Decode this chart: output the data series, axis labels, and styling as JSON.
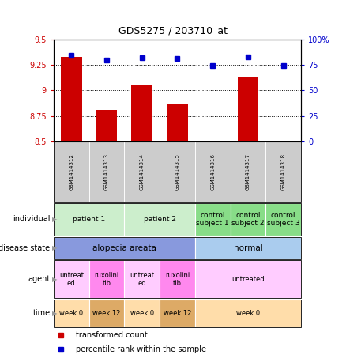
{
  "title": "GDS5275 / 203710_at",
  "samples": [
    "GSM1414312",
    "GSM1414313",
    "GSM1414314",
    "GSM1414315",
    "GSM1414316",
    "GSM1414317",
    "GSM1414318"
  ],
  "transformed_count": [
    9.33,
    8.81,
    9.05,
    8.87,
    8.51,
    9.13,
    8.5
  ],
  "percentile_rank": [
    84,
    80,
    82,
    81,
    74,
    83,
    74
  ],
  "ylim_left": [
    8.5,
    9.5
  ],
  "ylim_right": [
    0,
    100
  ],
  "yticks_left": [
    8.5,
    8.75,
    9.0,
    9.25,
    9.5
  ],
  "yticks_right": [
    0,
    25,
    50,
    75,
    100
  ],
  "ytick_labels_right": [
    "0",
    "25",
    "50",
    "75",
    "100%"
  ],
  "bar_color": "#cc0000",
  "dot_color": "#0000cc",
  "background_color": "#ffffff",
  "individual_groups": [
    {
      "span": [
        0,
        1
      ],
      "text": "patient 1",
      "color": "#cceecc"
    },
    {
      "span": [
        2,
        3
      ],
      "text": "patient 2",
      "color": "#cceecc"
    },
    {
      "span": [
        4,
        4
      ],
      "text": "control\nsubject 1",
      "color": "#88dd88"
    },
    {
      "span": [
        5,
        5
      ],
      "text": "control\nsubject 2",
      "color": "#88dd88"
    },
    {
      "span": [
        6,
        6
      ],
      "text": "control\nsubject 3",
      "color": "#88dd88"
    }
  ],
  "disease_groups": [
    {
      "span": [
        0,
        3
      ],
      "text": "alopecia areata",
      "color": "#8899dd"
    },
    {
      "span": [
        4,
        6
      ],
      "text": "normal",
      "color": "#aaccee"
    }
  ],
  "agent_groups": [
    {
      "span": [
        0,
        0
      ],
      "text": "untreat\ned",
      "color": "#ffccff"
    },
    {
      "span": [
        1,
        1
      ],
      "text": "ruxolini\ntib",
      "color": "#ff88ee"
    },
    {
      "span": [
        2,
        2
      ],
      "text": "untreat\ned",
      "color": "#ffccff"
    },
    {
      "span": [
        3,
        3
      ],
      "text": "ruxolini\ntib",
      "color": "#ff88ee"
    },
    {
      "span": [
        4,
        6
      ],
      "text": "untreated",
      "color": "#ffccff"
    }
  ],
  "time_groups": [
    {
      "span": [
        0,
        0
      ],
      "text": "week 0",
      "color": "#ffddaa"
    },
    {
      "span": [
        1,
        1
      ],
      "text": "week 12",
      "color": "#ddaa66"
    },
    {
      "span": [
        2,
        2
      ],
      "text": "week 0",
      "color": "#ffddaa"
    },
    {
      "span": [
        3,
        3
      ],
      "text": "week 12",
      "color": "#ddaa66"
    },
    {
      "span": [
        4,
        6
      ],
      "text": "week 0",
      "color": "#ffddaa"
    }
  ],
  "row_labels": [
    "individual",
    "disease state",
    "agent",
    "time"
  ]
}
